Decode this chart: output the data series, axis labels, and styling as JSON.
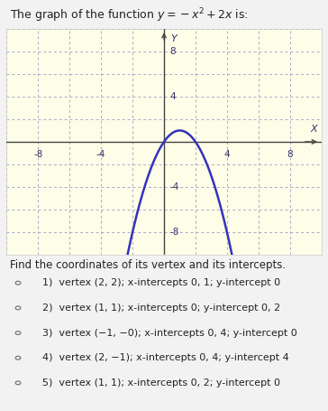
{
  "title_plain": "The graph of the function ",
  "title_math": "y = -x^{2} + 2x",
  "title_suffix": " is:",
  "xlim": [
    -10,
    10
  ],
  "ylim": [
    -10,
    10
  ],
  "xticks": [
    -8,
    -4,
    4,
    8
  ],
  "yticks": [
    -8,
    -4,
    4,
    8
  ],
  "xlabel": "X",
  "ylabel": "Y",
  "curve_color": "#3333bb",
  "curve_linewidth": 1.8,
  "bg_color": "#fdfde8",
  "grid_color": "#aaaacc",
  "axis_color": "#444444",
  "tick_color": "#333366",
  "fig_bg": "#f2f2f2",
  "question_text": "Find the coordinates of its vertex and its intercepts.",
  "options": [
    "1)  vertex (2, 2); x-intercepts 0, 1; y-intercept 0",
    "2)  vertex (1, 1); x-intercepts 0; y-intercept 0, 2",
    "3)  vertex (−1, −0); x-intercepts 0, 4; y-intercept 0",
    "4)  vertex (2, −1); x-intercepts 0, 4; y-intercept 4",
    "5)  vertex (1, 1); x-intercepts 0, 2; y-intercept 0"
  ],
  "fig_width": 3.64,
  "fig_height": 4.55,
  "dpi": 100
}
